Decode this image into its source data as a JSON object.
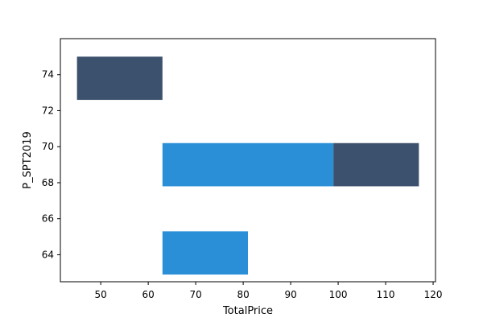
{
  "chart_data": {
    "type": "heatmap",
    "title": "",
    "xlabel": "TotalPrice",
    "ylabel": "P_SPT2019",
    "xlim": [
      41.5,
      120.5
    ],
    "ylim": [
      62.5,
      76.0
    ],
    "xticks": [
      50,
      60,
      70,
      80,
      90,
      100,
      110,
      120
    ],
    "yticks": [
      64,
      66,
      68,
      70,
      72,
      74
    ],
    "grid": false,
    "cells": [
      {
        "x0": 45,
        "x1": 63,
        "y0": 72.6,
        "y1": 75.0,
        "intensity": "high",
        "color": "#3c516d"
      },
      {
        "x0": 63,
        "x1": 99,
        "y0": 67.8,
        "y1": 70.2,
        "intensity": "medium",
        "color": "#2b8fd7"
      },
      {
        "x0": 99,
        "x1": 117,
        "y0": 67.8,
        "y1": 70.2,
        "intensity": "high",
        "color": "#3c516d"
      },
      {
        "x0": 63,
        "x1": 81,
        "y0": 62.9,
        "y1": 65.3,
        "intensity": "medium",
        "color": "#2b8fd7"
      }
    ]
  }
}
